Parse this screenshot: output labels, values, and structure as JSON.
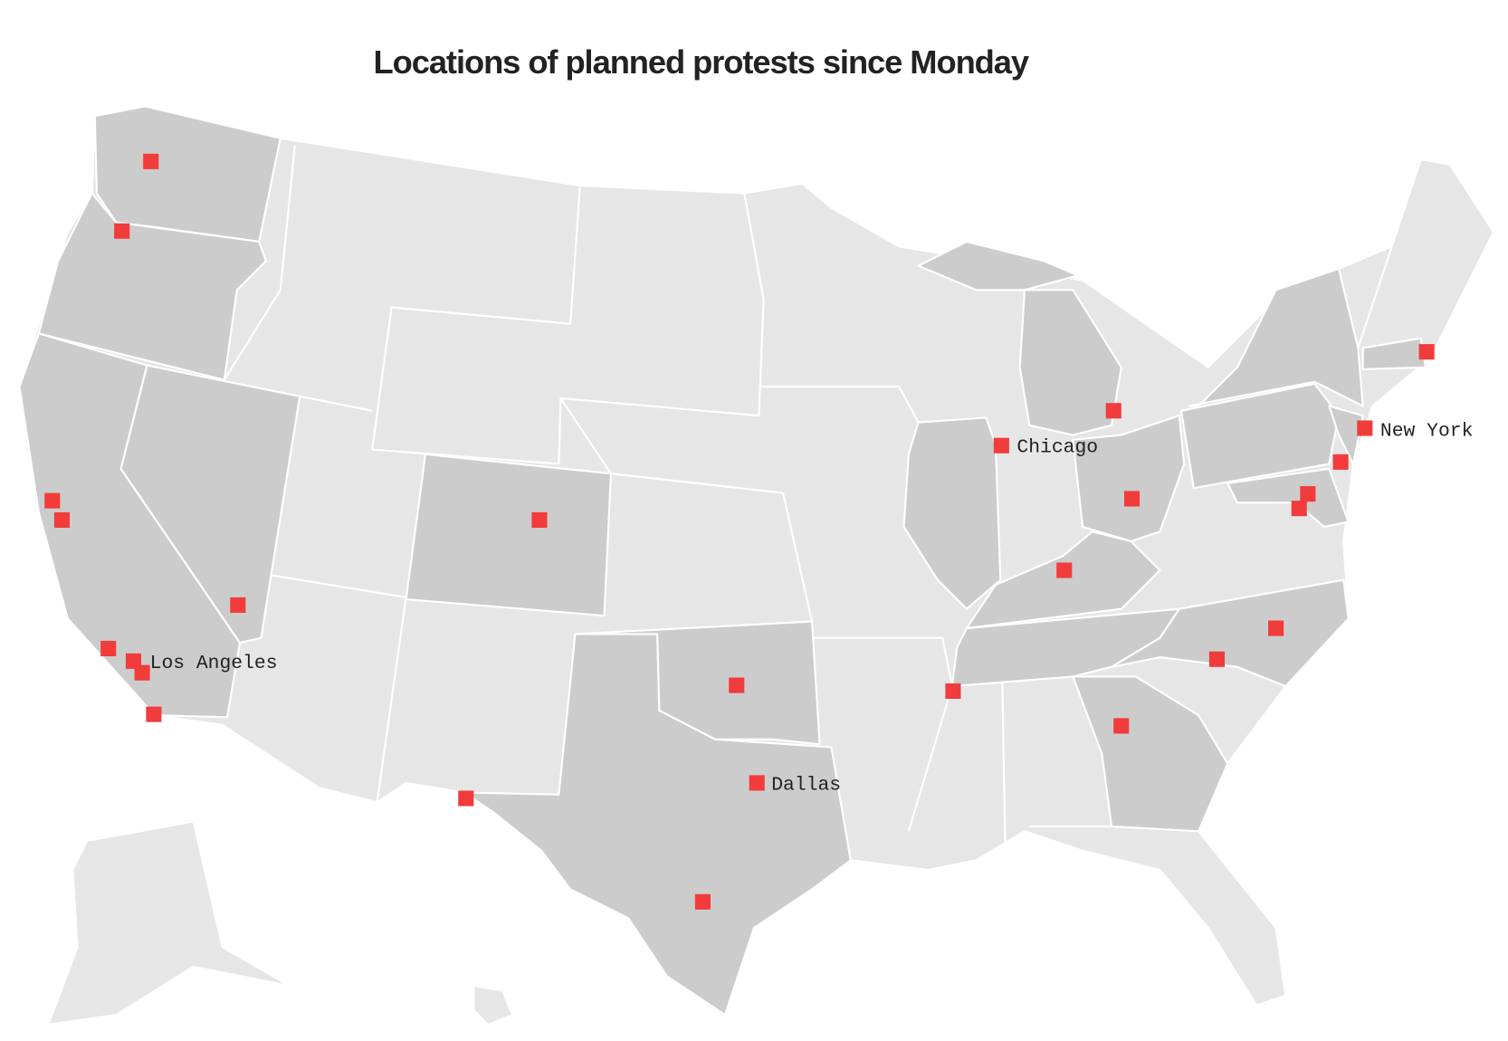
{
  "title": "Locations of planned protests since Monday",
  "labels": [
    "Chicago",
    "New York",
    "Los Angeles",
    "Dallas"
  ]
}
